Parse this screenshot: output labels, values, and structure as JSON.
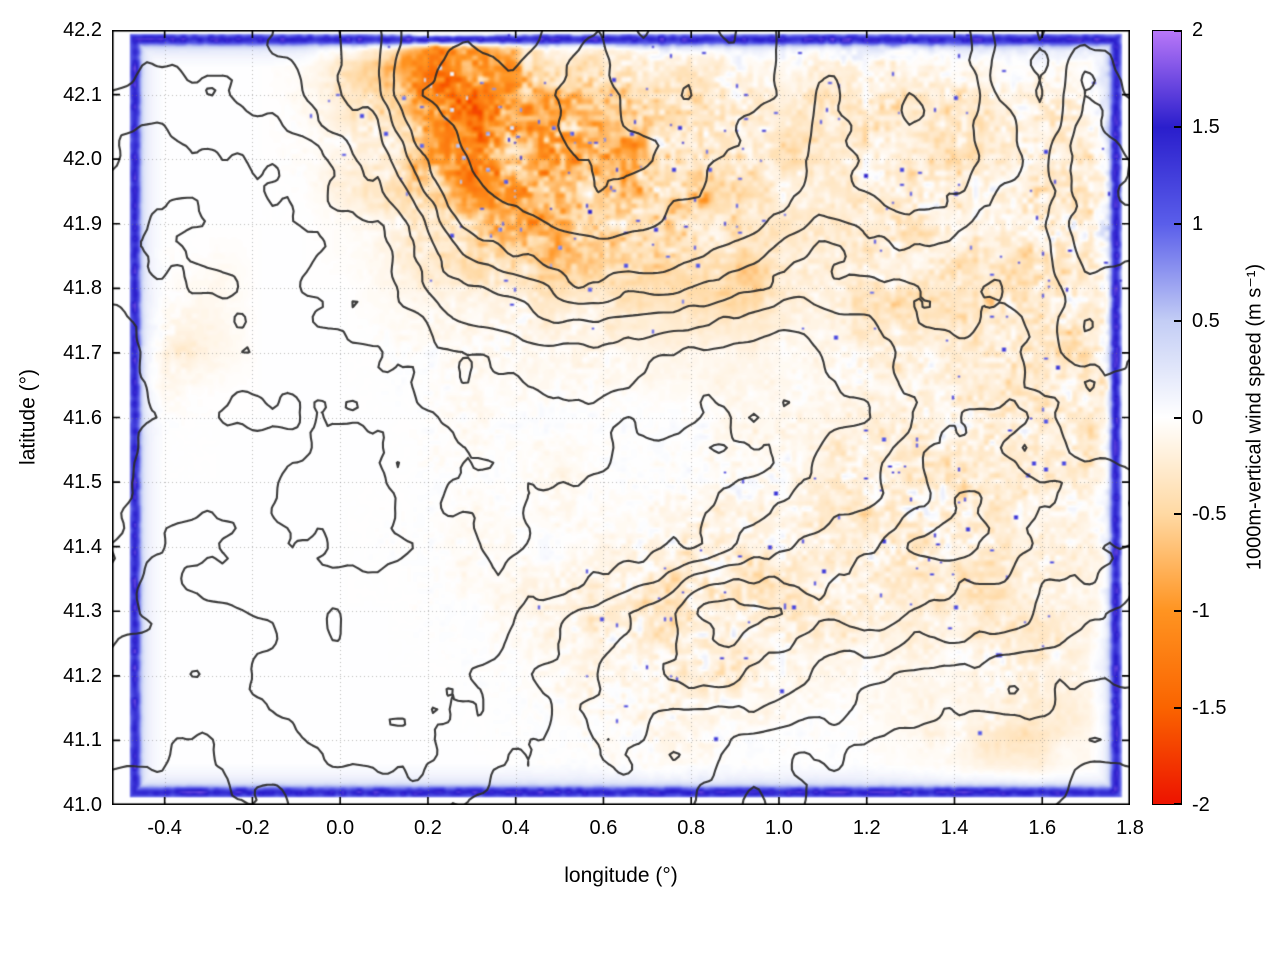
{
  "figure": {
    "x_axis": {
      "label": "longitude (°)",
      "range": [
        -0.52,
        1.8
      ],
      "ticks": [
        -0.4,
        -0.2,
        0,
        0.2,
        0.4,
        0.6,
        0.8,
        1,
        1.2,
        1.4,
        1.6,
        1.8
      ],
      "tick_labels": [
        "-0.4",
        "-0.2",
        "0.0",
        "0.2",
        "0.4",
        "0.6",
        "0.8",
        "1.0",
        "1.2",
        "1.4",
        "1.6",
        "1.8"
      ]
    },
    "y_axis": {
      "label": "latitude (°)",
      "range": [
        41.0,
        42.2
      ],
      "ticks": [
        41.0,
        41.1,
        41.2,
        41.3,
        41.4,
        41.5,
        41.6,
        41.7,
        41.8,
        41.9,
        42.0,
        42.1,
        42.2
      ],
      "tick_labels": [
        "41.0",
        "41.1",
        "41.2",
        "41.3",
        "41.4",
        "41.5",
        "41.6",
        "41.7",
        "41.8",
        "41.9",
        "42.0",
        "42.1",
        "42.2"
      ]
    },
    "colorbar": {
      "label": "1000m-vertical wind speed (m s⁻¹)",
      "range": [
        -2,
        2
      ],
      "ticks": [
        -2,
        -1.5,
        -1,
        -0.5,
        0,
        0.5,
        1,
        1.5,
        2
      ],
      "tick_labels": [
        "-2",
        "-1.5",
        "-1",
        "-0.5",
        "0",
        "0.5",
        "1",
        "1.5",
        "2"
      ]
    }
  },
  "chart_data": {
    "type": "heatmap",
    "title": "",
    "xlabel": "longitude (°)",
    "ylabel": "latitude (°)",
    "colorbar_label": "1000m-vertical wind speed (m s⁻¹)",
    "xlim": [
      -0.52,
      1.8
    ],
    "ylim": [
      41.0,
      42.2
    ],
    "clim": [
      -2,
      2
    ],
    "grid_on": true,
    "palette_stops": [
      {
        "v": -2.0,
        "c": "#ed1300"
      },
      {
        "v": -1.5,
        "c": "#fa6400"
      },
      {
        "v": -1.0,
        "c": "#ff9421"
      },
      {
        "v": -0.5,
        "c": "#ffd9a3"
      },
      {
        "v": 0.0,
        "c": "#ffffff"
      },
      {
        "v": 0.5,
        "c": "#c3cdf5"
      },
      {
        "v": 1.0,
        "c": "#5a5eea"
      },
      {
        "v": 1.5,
        "c": "#2a1ecc"
      },
      {
        "v": 2.0,
        "c": "#b877f8"
      }
    ],
    "data_domain": {
      "lon": [
        -0.475,
        1.775
      ],
      "lat": [
        41.015,
        42.19
      ]
    },
    "domain_border_value": 1.5,
    "vertical_wind_grid_lats_desc": [
      42.2,
      42.1,
      42.0,
      41.9,
      41.8,
      41.7,
      41.6,
      41.5,
      41.4,
      41.3,
      41.2,
      41.1,
      41.0
    ],
    "vertical_wind_values": [
      [
        0,
        0,
        0,
        0,
        0,
        -0.3,
        -0.6,
        -1.2,
        -1.5,
        -0.9,
        -0.5,
        -0.3,
        -0.2,
        -0.2,
        -0.1,
        -0.1,
        -0.2,
        -0.1,
        -0.1,
        -0.1,
        0,
        0,
        0,
        0
      ],
      [
        0,
        0,
        0,
        0,
        -0.1,
        -0.3,
        -0.5,
        -1.0,
        -1.3,
        -1.1,
        -0.9,
        -0.7,
        -0.5,
        -0.4,
        -0.3,
        -0.3,
        -0.3,
        -0.2,
        -0.2,
        -0.3,
        -0.2,
        -0.1,
        -0.1,
        0
      ],
      [
        0,
        0,
        0,
        0,
        0,
        -0.2,
        -0.4,
        -0.8,
        -1.2,
        -1.2,
        -1.0,
        -0.8,
        -0.6,
        -0.5,
        -0.4,
        -0.3,
        -0.3,
        -0.4,
        -0.3,
        -0.3,
        -0.2,
        -0.2,
        -0.2,
        -0.1
      ],
      [
        0,
        0,
        0,
        0,
        0,
        -0.1,
        -0.2,
        -0.5,
        -0.8,
        -0.9,
        -0.9,
        -0.8,
        -0.7,
        -0.6,
        -0.4,
        -0.3,
        -0.2,
        -0.3,
        -0.3,
        -0.2,
        -0.2,
        -0.3,
        -0.3,
        -0.2
      ],
      [
        0,
        0,
        -0.1,
        0,
        0,
        0,
        -0.1,
        -0.2,
        -0.3,
        -0.4,
        -0.5,
        -0.5,
        -0.5,
        -0.5,
        -0.5,
        -0.4,
        -0.4,
        -0.5,
        -0.4,
        -0.4,
        -0.4,
        -0.4,
        -0.3,
        -0.2
      ],
      [
        0,
        -0.2,
        -0.1,
        0,
        0,
        0,
        0,
        0,
        -0.1,
        -0.1,
        -0.1,
        -0.1,
        -0.1,
        -0.1,
        -0.1,
        -0.1,
        -0.1,
        -0.1,
        -0.2,
        -0.2,
        -0.2,
        -0.2,
        -0.3,
        -0.2
      ],
      [
        0,
        0,
        0,
        0,
        0,
        0,
        0,
        0,
        -0.1,
        0,
        0,
        0,
        0,
        0,
        -0.1,
        -0.1,
        -0.1,
        -0.1,
        -0.2,
        -0.2,
        -0.2,
        -0.2,
        -0.3,
        -0.3
      ],
      [
        0,
        0,
        0,
        0,
        0,
        0,
        0,
        0,
        0,
        0,
        -0.1,
        0,
        0,
        0,
        -0.1,
        -0.1,
        -0.2,
        -0.2,
        -0.2,
        -0.3,
        -0.3,
        -0.2,
        -0.2,
        -0.2
      ],
      [
        0,
        0,
        0,
        0,
        0,
        0,
        0,
        0,
        -0.1,
        0,
        0,
        -0.1,
        -0.1,
        -0.2,
        -0.2,
        -0.2,
        -0.2,
        -0.3,
        -0.3,
        -0.3,
        -0.3,
        -0.2,
        -0.2,
        -0.2
      ],
      [
        0,
        0,
        0,
        0,
        0,
        0,
        0,
        0,
        0,
        -0.1,
        -0.1,
        -0.2,
        -0.3,
        -0.3,
        -0.3,
        -0.3,
        -0.3,
        -0.3,
        -0.2,
        -0.2,
        -0.3,
        -0.3,
        -0.2,
        -0.1
      ],
      [
        0,
        0,
        0,
        0,
        0,
        0,
        0,
        0,
        0,
        0,
        -0.1,
        -0.1,
        -0.1,
        -0.2,
        -0.2,
        -0.1,
        -0.1,
        -0.1,
        -0.1,
        -0.1,
        -0.2,
        -0.2,
        -0.1,
        0
      ],
      [
        0,
        0,
        0,
        0,
        0,
        0,
        0,
        0,
        0,
        0,
        0,
        0,
        -0.1,
        -0.1,
        0,
        0,
        0,
        0,
        -0.1,
        -0.2,
        -0.3,
        -0.3,
        -0.2,
        -0.1
      ],
      [
        0,
        0,
        0,
        0,
        0,
        0,
        0,
        0,
        0,
        0,
        0,
        0,
        0,
        0,
        0,
        0,
        0,
        0,
        0,
        0,
        0,
        0,
        0,
        0
      ]
    ],
    "speckle_intensity": [
      [
        0,
        0,
        0,
        0,
        0,
        0.2,
        0.4,
        0.6,
        0.6,
        0.4,
        0.3,
        0.2,
        0.2,
        0.2,
        0.1,
        0.1,
        0.2,
        0.3,
        0.3,
        0.2,
        0.1,
        0.1,
        0.1,
        0
      ],
      [
        0,
        0,
        0,
        0,
        0.1,
        0.3,
        0.5,
        0.9,
        1,
        1,
        0.9,
        0.8,
        0.7,
        0.6,
        0.5,
        0.4,
        0.4,
        0.5,
        0.5,
        0.5,
        0.4,
        0.4,
        0.4,
        0.2
      ],
      [
        0,
        0,
        0,
        0,
        0.1,
        0.2,
        0.4,
        0.8,
        1,
        1,
        1,
        0.9,
        0.8,
        0.7,
        0.5,
        0.4,
        0.4,
        0.5,
        0.5,
        0.5,
        0.5,
        0.5,
        0.6,
        0.3
      ],
      [
        0,
        0,
        0,
        0,
        0,
        0.1,
        0.2,
        0.5,
        0.8,
        0.9,
        0.9,
        0.9,
        0.8,
        0.7,
        0.5,
        0.3,
        0.3,
        0.4,
        0.5,
        0.4,
        0.4,
        0.6,
        0.7,
        0.4
      ],
      [
        0,
        0.1,
        0.1,
        0,
        0,
        0,
        0.1,
        0.2,
        0.3,
        0.3,
        0.3,
        0.3,
        0.3,
        0.3,
        0.3,
        0.3,
        0.3,
        0.4,
        0.4,
        0.4,
        0.5,
        0.6,
        0.6,
        0.3
      ],
      [
        0,
        0.2,
        0.1,
        0,
        0,
        0,
        0.1,
        0.1,
        0.2,
        0.2,
        0.2,
        0.2,
        0.1,
        0.1,
        0.1,
        0.1,
        0.2,
        0.3,
        0.4,
        0.4,
        0.4,
        0.5,
        0.6,
        0.3
      ],
      [
        0,
        0.1,
        0,
        0,
        0,
        0,
        0,
        0.1,
        0.2,
        0.1,
        0.1,
        0.1,
        0.1,
        0.1,
        0.2,
        0.2,
        0.2,
        0.3,
        0.4,
        0.5,
        0.5,
        0.5,
        0.5,
        0.3
      ],
      [
        0,
        0,
        0,
        0,
        0,
        0,
        0,
        0.1,
        0.1,
        0.1,
        0.2,
        0.1,
        0.1,
        0.2,
        0.3,
        0.3,
        0.4,
        0.5,
        0.5,
        0.6,
        0.5,
        0.4,
        0.4,
        0.2
      ],
      [
        0,
        0,
        0,
        0,
        0,
        0,
        0.1,
        0.1,
        0.2,
        0.1,
        0.1,
        0.2,
        0.3,
        0.4,
        0.4,
        0.4,
        0.4,
        0.5,
        0.5,
        0.5,
        0.4,
        0.3,
        0.3,
        0.2
      ],
      [
        0,
        0,
        0,
        0,
        0,
        0,
        0,
        0.1,
        0.1,
        0.2,
        0.3,
        0.5,
        0.6,
        0.6,
        0.6,
        0.5,
        0.5,
        0.4,
        0.3,
        0.4,
        0.4,
        0.4,
        0.3,
        0.1
      ],
      [
        0,
        0,
        0,
        0,
        0,
        0,
        0,
        0,
        0.1,
        0.1,
        0.2,
        0.3,
        0.4,
        0.5,
        0.4,
        0.3,
        0.2,
        0.2,
        0.2,
        0.2,
        0.3,
        0.3,
        0.2,
        0
      ],
      [
        0,
        0,
        0,
        0,
        0,
        0,
        0,
        0,
        0,
        0.1,
        0.1,
        0.2,
        0.3,
        0.3,
        0.2,
        0.1,
        0.1,
        0.1,
        0.1,
        0.2,
        0.2,
        0.2,
        0.1,
        0
      ],
      [
        0,
        0,
        0,
        0,
        0,
        0,
        0,
        0,
        0,
        0,
        0,
        0,
        0,
        0,
        0,
        0,
        0,
        0,
        0,
        0,
        0,
        0,
        0,
        0
      ]
    ],
    "terrain_contour_levels": [
      1,
      1.5,
      2,
      2.5,
      3,
      3.5,
      4,
      5,
      6
    ],
    "terrain_contour_color": "#2b2b2b",
    "terrain_elevation": [
      [
        2.5,
        2.5,
        2.3,
        2.2,
        2.5,
        3.0,
        3.5,
        4.5,
        5.0,
        4.5,
        5.5,
        6.0,
        5.0,
        5.5,
        6.0,
        5.0,
        4.5,
        4.0,
        4.5,
        4.0,
        3.5,
        3.0,
        3.5,
        3.0
      ],
      [
        2.0,
        1.8,
        1.8,
        2.0,
        2.2,
        2.8,
        3.2,
        4.8,
        5.5,
        5.0,
        6.0,
        6.5,
        5.5,
        6.0,
        5.5,
        5.0,
        4.0,
        4.5,
        5.0,
        4.5,
        3.5,
        3.0,
        4.0,
        3.5
      ],
      [
        1.5,
        1.2,
        1.3,
        1.5,
        1.8,
        2.2,
        2.6,
        4.0,
        5.0,
        5.5,
        5.8,
        6.2,
        6.0,
        5.5,
        5.0,
        4.5,
        3.8,
        4.2,
        4.8,
        4.2,
        3.6,
        3.2,
        4.2,
        4.0
      ],
      [
        1.2,
        1.0,
        1.1,
        1.3,
        1.5,
        1.8,
        2.0,
        3.0,
        4.0,
        4.8,
        5.2,
        5.5,
        5.2,
        4.8,
        4.2,
        3.8,
        3.4,
        3.6,
        4.0,
        3.8,
        3.4,
        3.6,
        4.4,
        4.2
      ],
      [
        1.0,
        0.9,
        1.0,
        1.2,
        1.3,
        1.5,
        1.7,
        2.2,
        2.8,
        3.2,
        3.6,
        3.8,
        3.6,
        3.4,
        3.0,
        2.8,
        2.6,
        2.8,
        3.0,
        3.2,
        3.0,
        3.4,
        4.0,
        3.8
      ],
      [
        0.9,
        1.0,
        1.1,
        1.0,
        1.1,
        1.2,
        1.4,
        1.8,
        2.0,
        2.2,
        2.4,
        2.4,
        2.2,
        2.0,
        1.9,
        1.8,
        2.0,
        2.2,
        2.6,
        2.8,
        2.8,
        3.2,
        3.8,
        3.6
      ],
      [
        0.8,
        1.1,
        1.2,
        1.0,
        0.9,
        1.0,
        1.2,
        1.5,
        1.8,
        1.9,
        2.0,
        1.8,
        1.6,
        1.5,
        1.5,
        1.6,
        1.8,
        2.0,
        2.4,
        2.8,
        3.0,
        3.0,
        3.4,
        3.2
      ],
      [
        0.9,
        1.3,
        1.4,
        1.2,
        0.9,
        0.8,
        1.0,
        1.3,
        1.6,
        1.7,
        1.6,
        1.4,
        1.2,
        1.2,
        1.4,
        1.6,
        2.0,
        2.4,
        2.8,
        3.2,
        3.4,
        3.0,
        3.0,
        2.8
      ],
      [
        1.1,
        1.5,
        1.6,
        1.4,
        1.0,
        0.8,
        0.9,
        1.2,
        1.4,
        1.5,
        1.4,
        1.2,
        1.2,
        1.5,
        2.0,
        2.4,
        2.6,
        3.0,
        3.4,
        3.6,
        3.4,
        2.8,
        2.6,
        2.4
      ],
      [
        1.3,
        1.6,
        1.7,
        1.5,
        1.2,
        1.0,
        1.0,
        1.2,
        1.3,
        1.5,
        1.8,
        2.2,
        2.8,
        3.4,
        3.8,
        3.6,
        3.0,
        3.2,
        3.0,
        2.8,
        2.6,
        2.4,
        2.2,
        2.0
      ],
      [
        1.5,
        1.7,
        1.8,
        1.6,
        1.4,
        1.2,
        1.1,
        1.2,
        1.4,
        1.7,
        2.0,
        2.4,
        2.8,
        3.0,
        3.2,
        2.8,
        2.4,
        2.2,
        2.0,
        1.9,
        1.8,
        1.7,
        1.6,
        1.5
      ],
      [
        1.7,
        1.9,
        2.0,
        1.8,
        1.6,
        1.5,
        1.4,
        1.5,
        1.7,
        2.0,
        2.2,
        2.4,
        2.4,
        2.2,
        2.0,
        1.8,
        1.6,
        1.5,
        1.4,
        1.3,
        1.2,
        1.2,
        1.1,
        1.0
      ],
      [
        2.0,
        2.2,
        2.2,
        2.0,
        1.9,
        1.8,
        1.7,
        1.8,
        2.0,
        2.2,
        2.4,
        2.4,
        2.2,
        2.0,
        1.8,
        1.6,
        1.4,
        1.3,
        1.2,
        1.1,
        1.0,
        0.9,
        0.9,
        0.8
      ]
    ]
  }
}
